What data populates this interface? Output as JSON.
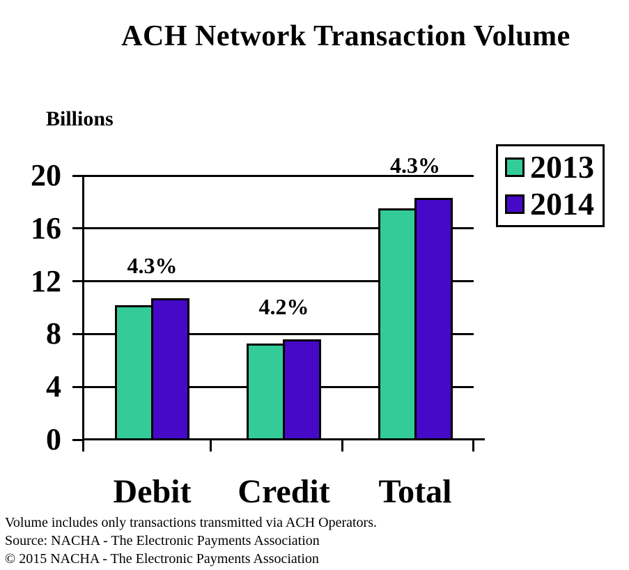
{
  "title": "ACH Network Transaction Volume",
  "unit_label": "Billions",
  "legend": {
    "items": [
      {
        "label": "2013",
        "color": "#33CC99"
      },
      {
        "label": "2014",
        "color": "#4609C8"
      }
    ]
  },
  "footnotes": {
    "line1": "Volume includes only transactions transmitted via ACH Operators.",
    "line2": "Source: NACHA - The Electronic Payments Association",
    "line3": "© 2015 NACHA - The Electronic Payments Association"
  },
  "chart_data": {
    "type": "bar",
    "title": "ACH Network Transaction Volume",
    "ylabel": "Billions",
    "categories": [
      "Debit",
      "Credit",
      "Total"
    ],
    "series": [
      {
        "name": "2013",
        "color": "#33CC99",
        "values": [
          10.2,
          7.3,
          17.5
        ]
      },
      {
        "name": "2014",
        "color": "#4609C8",
        "values": [
          10.7,
          7.6,
          18.3
        ]
      }
    ],
    "growth_labels": [
      "4.3%",
      "4.2%",
      "4.3%"
    ],
    "ylim": [
      0,
      20
    ],
    "yticks": [
      0,
      4,
      8,
      12,
      16,
      20
    ],
    "grid": true,
    "legend_position": "top-right",
    "bar_edge_color": "#000000"
  }
}
